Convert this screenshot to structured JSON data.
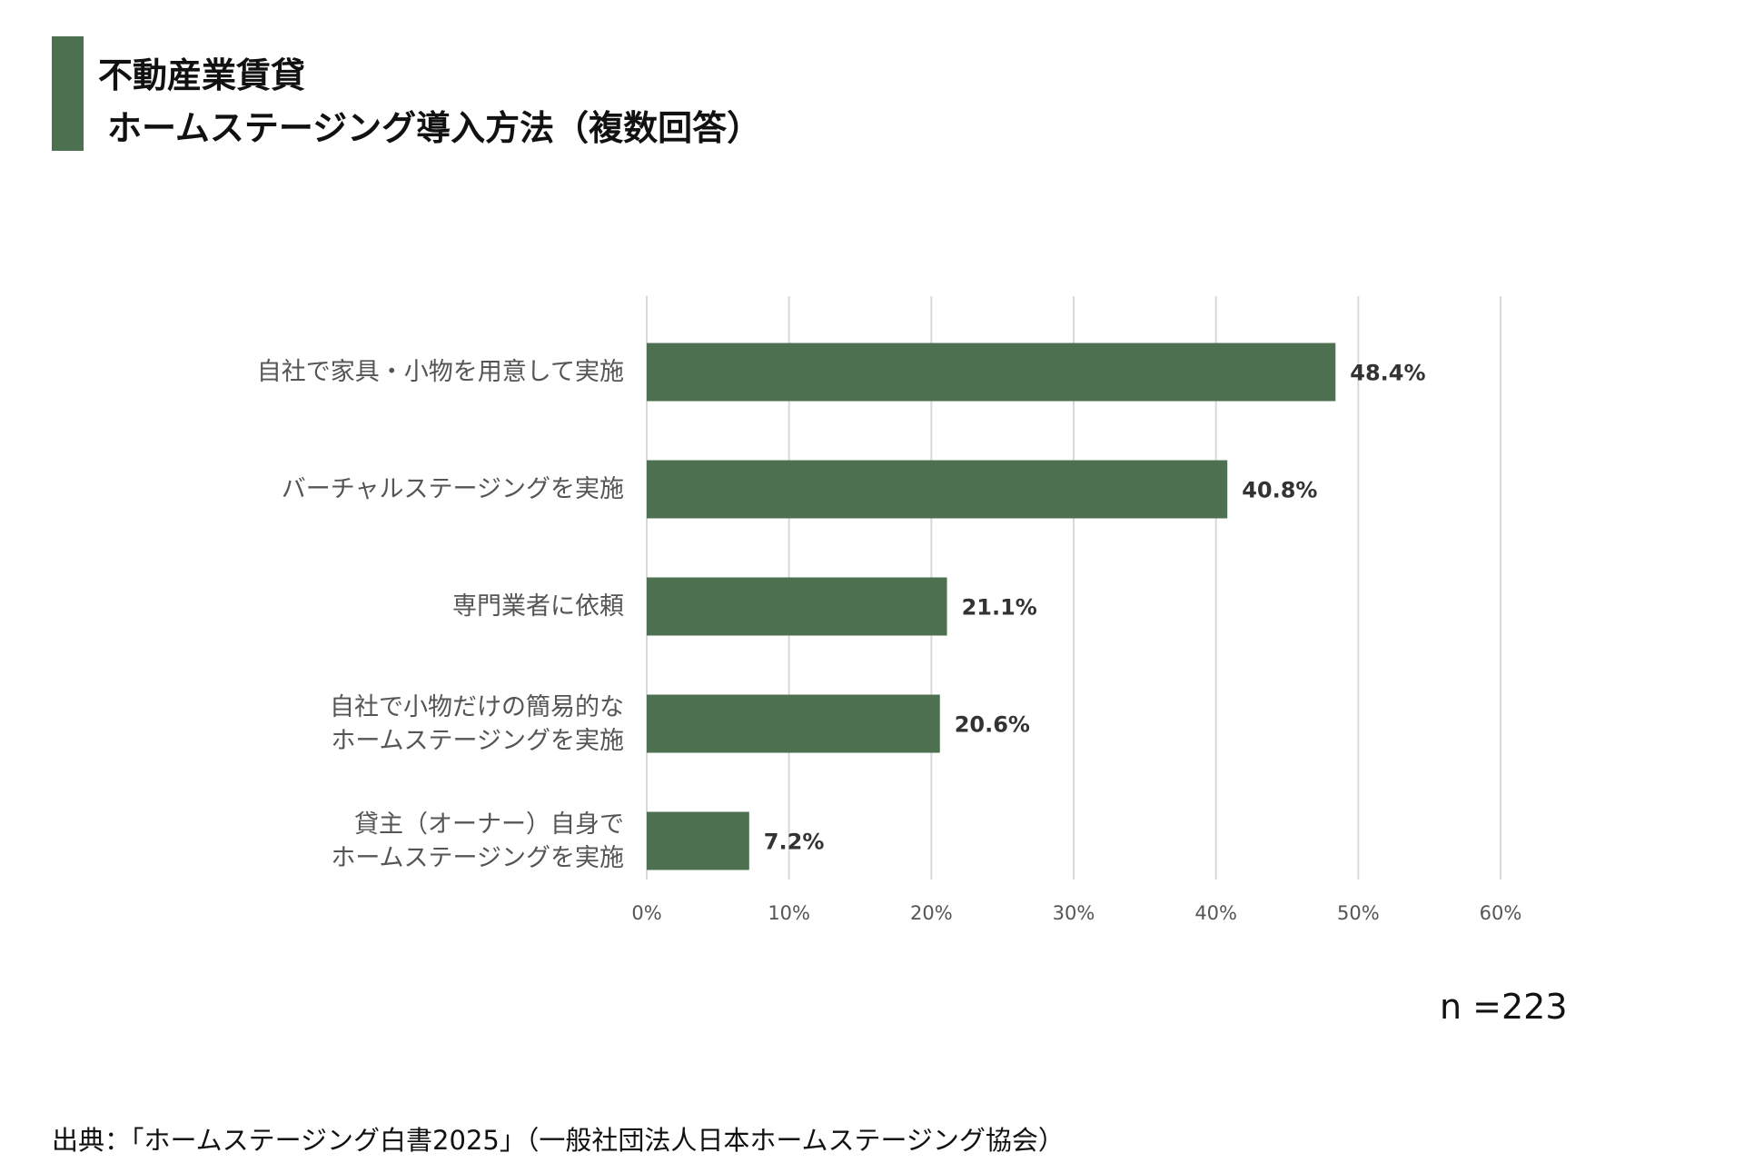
{
  "title": {
    "line1": "不動産業賃貸",
    "line2": "ホームステージング導入方法（複数回答）"
  },
  "chart_data": {
    "type": "bar",
    "orientation": "horizontal",
    "categories": [
      "自社で家具・小物を用意して実施",
      "バーチャルステージングを実施",
      "専門業者に依頼",
      "自社で小物だけの簡易的な\nホームステージングを実施",
      "貸主（オーナー）自身で\nホームステージングを実施"
    ],
    "values": [
      48.4,
      40.8,
      21.1,
      20.6,
      7.2
    ],
    "value_labels": [
      "48.4%",
      "40.8%",
      "21.1%",
      "20.6%",
      "7.2%"
    ],
    "x_ticks": [
      "0%",
      "10%",
      "20%",
      "30%",
      "40%",
      "50%",
      "60%"
    ],
    "xlim": [
      0,
      60
    ],
    "grid": true,
    "color": "#4d7150"
  },
  "sample_note": "n =223",
  "source": "出典：「ホームステージング白書2025」（一般社団法人日本ホームステージング協会）"
}
